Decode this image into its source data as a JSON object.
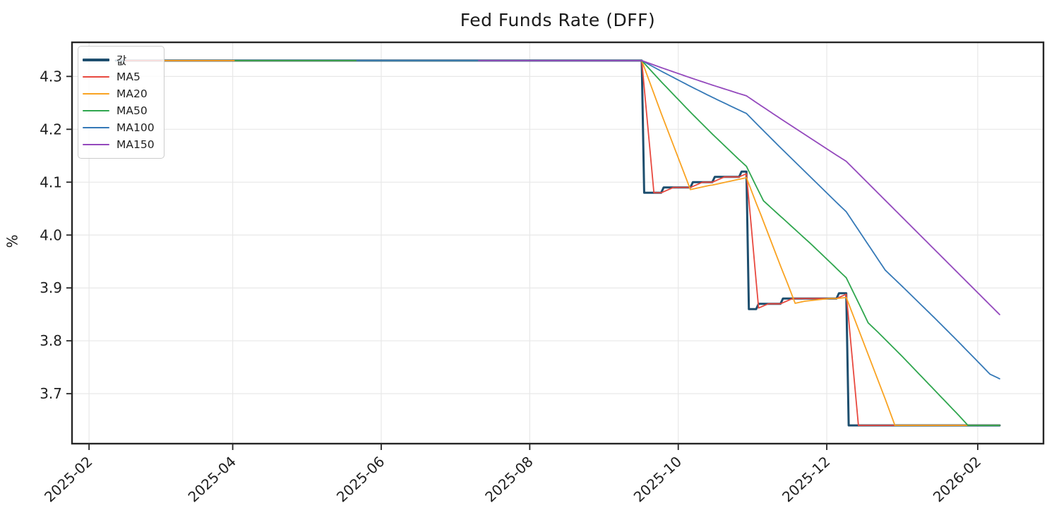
{
  "chart_data": {
    "type": "line",
    "title": "Fed Funds Rate (DFF)",
    "ylabel": "%",
    "grid": true,
    "legend_position": "upper-left",
    "x_domain": [
      "2025-01-25",
      "2026-02-28"
    ],
    "y_domain": [
      3.6055,
      4.3645
    ],
    "x_ticks": [
      {
        "date": "2025-02-01",
        "label": "2025-02"
      },
      {
        "date": "2025-04-01",
        "label": "2025-04"
      },
      {
        "date": "2025-06-01",
        "label": "2025-06"
      },
      {
        "date": "2025-08-01",
        "label": "2025-08"
      },
      {
        "date": "2025-10-01",
        "label": "2025-10"
      },
      {
        "date": "2025-12-01",
        "label": "2025-12"
      },
      {
        "date": "2026-02-01",
        "label": "2026-02"
      }
    ],
    "y_ticks": [
      {
        "value": 3.7,
        "label": "3.7"
      },
      {
        "value": 3.8,
        "label": "3.8"
      },
      {
        "value": 3.9,
        "label": "3.9"
      },
      {
        "value": 4.0,
        "label": "4.0"
      },
      {
        "value": 4.1,
        "label": "4.1"
      },
      {
        "value": 4.2,
        "label": "4.2"
      },
      {
        "value": 4.3,
        "label": "4.3"
      }
    ],
    "data_start": "2025-02-12",
    "data_end": "2026-02-10",
    "value_steps": [
      {
        "from": "2025-02-12",
        "to": "2025-09-16",
        "value": 4.33
      },
      {
        "from": "2025-09-17",
        "to": "2025-09-24",
        "value": 4.08
      },
      {
        "from": "2025-09-25",
        "to": "2025-10-06",
        "value": 4.09
      },
      {
        "from": "2025-10-07",
        "to": "2025-10-15",
        "value": 4.1
      },
      {
        "from": "2025-10-16",
        "to": "2025-10-26",
        "value": 4.11
      },
      {
        "from": "2025-10-27",
        "to": "2025-10-29",
        "value": 4.12
      },
      {
        "from": "2025-10-30",
        "to": "2025-11-02",
        "value": 3.86
      },
      {
        "from": "2025-11-03",
        "to": "2025-11-12",
        "value": 3.87
      },
      {
        "from": "2025-11-13",
        "to": "2025-12-05",
        "value": 3.88
      },
      {
        "from": "2025-12-06",
        "to": "2025-12-09",
        "value": 3.89
      },
      {
        "from": "2025-12-10",
        "to": "2026-02-10",
        "value": 3.64
      }
    ],
    "series": [
      {
        "name": "값",
        "window": 1,
        "color": "#1d4e6e",
        "width": 3.0
      },
      {
        "name": "MA5",
        "window": 5,
        "color": "#e8493f",
        "width": 1.8
      },
      {
        "name": "MA20",
        "window": 20,
        "color": "#f9a322",
        "width": 1.8
      },
      {
        "name": "MA50",
        "window": 50,
        "color": "#2fa64e",
        "width": 1.8
      },
      {
        "name": "MA100",
        "window": 100,
        "color": "#3579b7",
        "width": 1.8
      },
      {
        "name": "MA150",
        "window": 150,
        "color": "#9449bd",
        "width": 1.8
      }
    ],
    "colors": {
      "grid": "#e8e8e8",
      "frame": "#262626",
      "tick_text": "#1f1f1f",
      "background": "#ffffff"
    }
  }
}
